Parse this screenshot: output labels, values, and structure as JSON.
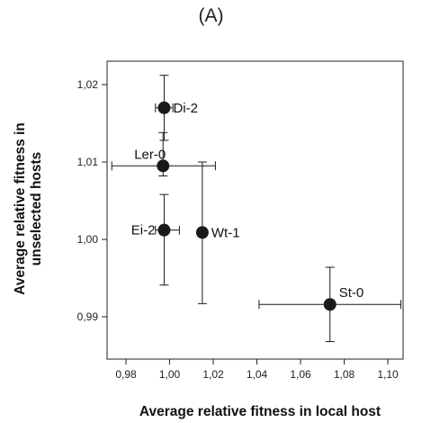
{
  "panel_label": "(A)",
  "chart_data": {
    "type": "scatter",
    "xlabel": "Average relative fitness in local host",
    "ylabel_lines": [
      "Average relative fitness in",
      "unselected hosts"
    ],
    "xlim": [
      0.97,
      1.11
    ],
    "ylim": [
      0.985,
      1.025
    ],
    "x_ticks": [
      0.98,
      1.0,
      1.02,
      1.04,
      1.06,
      1.08,
      1.1
    ],
    "x_tick_labels": [
      "0,98",
      "1,00",
      "1,02",
      "1,04",
      "1,06",
      "1,08",
      "1,10"
    ],
    "y_ticks": [
      0.99,
      1.0,
      1.01,
      1.02
    ],
    "y_tick_labels": [
      "0,99",
      "1,00",
      "1,01",
      "1,02"
    ],
    "grid": false,
    "marker_color": "#1a1a1a",
    "points": [
      {
        "label": "Di-2",
        "x": 0.9975,
        "y": 1.017,
        "x_err": [
          0.9935,
          1.0015
        ],
        "y_err": [
          1.0128,
          1.0212
        ],
        "label_pos": "right"
      },
      {
        "label": "Ler-0",
        "x": 0.997,
        "y": 1.0095,
        "x_err": [
          0.9735,
          1.021
        ],
        "y_err": [
          1.0082,
          1.0138
        ],
        "label_pos": "upper-left"
      },
      {
        "label": "Ei-2",
        "x": 0.9975,
        "y": 1.0012,
        "x_err": [
          0.9935,
          1.0045
        ],
        "y_err": [
          0.9941,
          1.0058
        ],
        "label_pos": "left"
      },
      {
        "label": "Wt-1",
        "x": 1.015,
        "y": 1.0009,
        "x_err": [
          1.015,
          1.015
        ],
        "y_err": [
          0.9917,
          1.01
        ],
        "label_pos": "right"
      },
      {
        "label": "St-0",
        "x": 1.0735,
        "y": 0.9916,
        "x_err": [
          1.041,
          1.106
        ],
        "y_err": [
          0.9868,
          0.9964
        ],
        "label_pos": "upper-right"
      }
    ]
  }
}
